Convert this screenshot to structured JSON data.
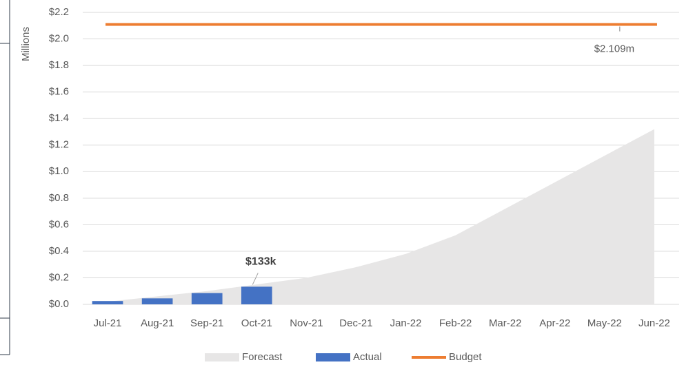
{
  "chart_data": {
    "type": "combo",
    "ylabel": "Millions",
    "categories": [
      "Jul-21",
      "Aug-21",
      "Sep-21",
      "Oct-21",
      "Nov-21",
      "Dec-21",
      "Jan-22",
      "Feb-22",
      "Mar-22",
      "Apr-22",
      "May-22",
      "Jun-22"
    ],
    "series": [
      {
        "name": "Forecast",
        "kind": "area",
        "color": "#e7e6e6",
        "values": [
          0.02,
          0.06,
          0.1,
          0.15,
          0.2,
          0.28,
          0.38,
          0.52,
          0.72,
          0.92,
          1.12,
          1.32
        ]
      },
      {
        "name": "Actual",
        "kind": "bar",
        "color": "#4472c4",
        "values": [
          0.025,
          0.045,
          0.085,
          0.133,
          null,
          null,
          null,
          null,
          null,
          null,
          null,
          null
        ],
        "value_labels": [
          null,
          null,
          null,
          "$133k",
          null,
          null,
          null,
          null,
          null,
          null,
          null,
          null
        ]
      },
      {
        "name": "Budget",
        "kind": "line",
        "color": "#ed7d31",
        "values": [
          2.109,
          2.109,
          2.109,
          2.109,
          2.109,
          2.109,
          2.109,
          2.109,
          2.109,
          2.109,
          2.109,
          2.109
        ],
        "value_labels": [
          null,
          null,
          null,
          null,
          null,
          null,
          null,
          null,
          null,
          null,
          "$2.109m",
          null
        ]
      }
    ],
    "ylim": [
      0,
      2.2
    ],
    "yticks": [
      {
        "value": 0,
        "label": "$0.0"
      },
      {
        "value": 0.2,
        "label": "$0.2"
      },
      {
        "value": 0.4,
        "label": "$0.4"
      },
      {
        "value": 0.6,
        "label": "$0.6"
      },
      {
        "value": 0.8,
        "label": "$0.8"
      },
      {
        "value": 1.0,
        "label": "$1.0"
      },
      {
        "value": 1.2,
        "label": "$1.2"
      },
      {
        "value": 1.4,
        "label": "$1.4"
      },
      {
        "value": 1.6,
        "label": "$1.6"
      },
      {
        "value": 1.8,
        "label": "$1.8"
      },
      {
        "value": 2.0,
        "label": "$2.0"
      },
      {
        "value": 2.2,
        "label": "$2.2"
      }
    ],
    "grid": true,
    "legend": "bottom"
  }
}
